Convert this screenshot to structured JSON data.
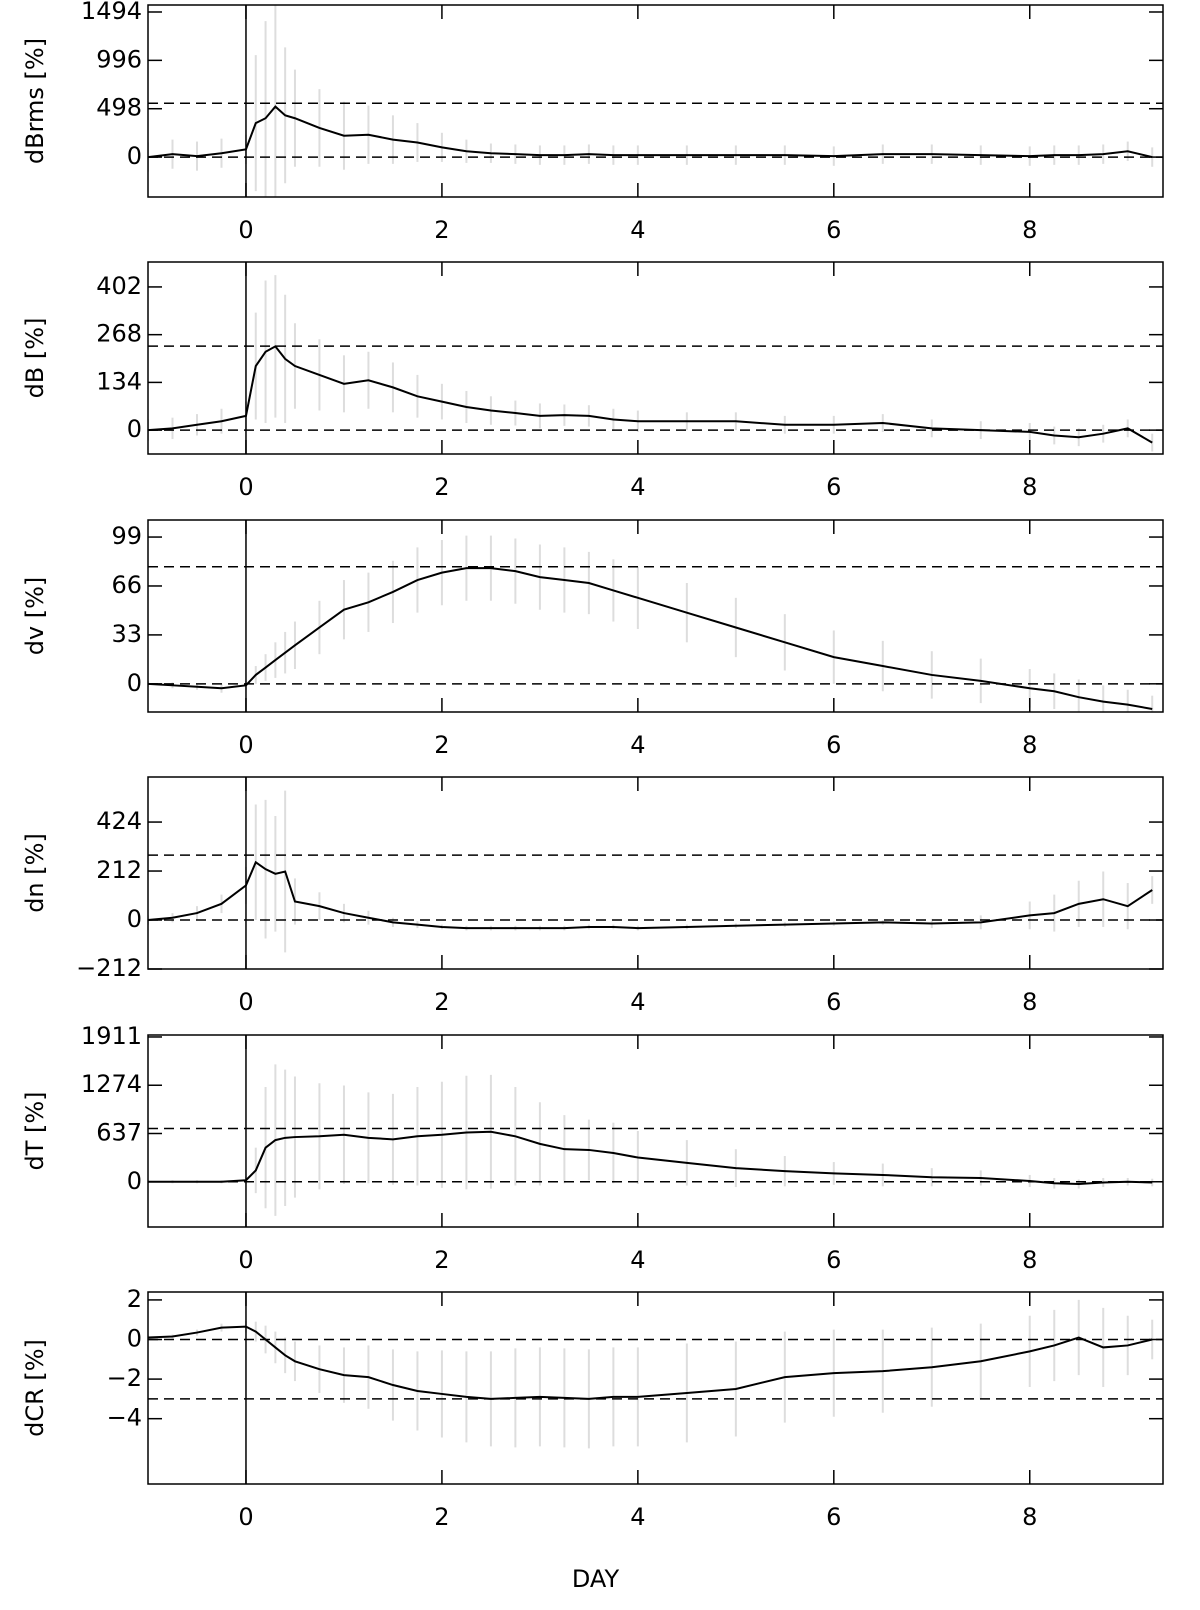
{
  "chart_data": [
    {
      "type": "line",
      "ylabel": "dBrms [%]",
      "x": [
        -1,
        -0.75,
        -0.5,
        -0.25,
        0,
        0.1,
        0.2,
        0.3,
        0.4,
        0.5,
        0.75,
        1,
        1.25,
        1.5,
        1.75,
        2,
        2.25,
        2.5,
        2.75,
        3,
        3.25,
        3.5,
        3.75,
        4,
        4.5,
        5,
        5.5,
        6,
        6.5,
        7,
        7.5,
        8,
        8.25,
        8.5,
        8.75,
        9,
        9.25
      ],
      "series": [
        {
          "color": "#000000",
          "error_color": "#dddddd",
          "values": [
            0,
            30,
            10,
            40,
            80,
            350,
            400,
            520,
            430,
            400,
            300,
            220,
            230,
            180,
            150,
            100,
            60,
            40,
            30,
            20,
            20,
            30,
            20,
            20,
            20,
            20,
            20,
            10,
            30,
            30,
            20,
            10,
            20,
            20,
            30,
            60,
            0
          ],
          "errors": [
            150,
            150,
            150,
            150,
            150,
            700,
            1000,
            1200,
            700,
            500,
            400,
            350,
            300,
            250,
            200,
            150,
            120,
            100,
            100,
            100,
            100,
            100,
            100,
            100,
            100,
            100,
            100,
            100,
            100,
            100,
            100,
            100,
            100,
            100,
            100,
            100,
            100
          ]
        }
      ],
      "xlim": [
        -1,
        9.36
      ],
      "ylim": [
        -411,
        1566
      ],
      "xticks": [
        0,
        2,
        4,
        6,
        8
      ],
      "yticks": [
        0,
        498,
        996,
        1494
      ],
      "hlines": [
        0,
        554
      ],
      "vline": 0
    },
    {
      "type": "line",
      "ylabel": "dB [%]",
      "x": [
        -1,
        -0.75,
        -0.5,
        -0.25,
        0,
        0.1,
        0.2,
        0.3,
        0.4,
        0.5,
        0.75,
        1,
        1.25,
        1.5,
        1.75,
        2,
        2.25,
        2.5,
        2.75,
        3,
        3.25,
        3.5,
        3.75,
        4,
        4.5,
        5,
        5.5,
        6,
        6.5,
        7,
        7.5,
        8,
        8.25,
        8.5,
        8.75,
        9,
        9.25
      ],
      "series": [
        {
          "color": "#000000",
          "error_color": "#dddddd",
          "values": [
            0,
            5,
            15,
            25,
            40,
            180,
            220,
            235,
            200,
            180,
            155,
            130,
            140,
            120,
            95,
            80,
            65,
            55,
            48,
            40,
            42,
            40,
            30,
            25,
            25,
            25,
            15,
            15,
            20,
            5,
            0,
            -5,
            -15,
            -20,
            -10,
            5,
            -35
          ],
          "errors": [
            30,
            30,
            30,
            35,
            40,
            150,
            200,
            200,
            180,
            120,
            100,
            80,
            80,
            70,
            60,
            50,
            45,
            40,
            35,
            35,
            30,
            30,
            30,
            30,
            25,
            25,
            25,
            25,
            25,
            25,
            25,
            25,
            25,
            25,
            25,
            25,
            25
          ]
        }
      ],
      "xlim": [
        -1,
        9.36
      ],
      "ylim": [
        -67,
        472
      ],
      "xticks": [
        0,
        2,
        4,
        6,
        8
      ],
      "yticks": [
        0,
        134,
        268,
        402
      ],
      "hlines": [
        0,
        236
      ],
      "vline": 0
    },
    {
      "type": "line",
      "ylabel": "dv [%]",
      "x": [
        -1,
        -0.75,
        -0.5,
        -0.25,
        0,
        0.1,
        0.2,
        0.3,
        0.4,
        0.5,
        0.75,
        1,
        1.25,
        1.5,
        1.75,
        2,
        2.25,
        2.5,
        2.75,
        3,
        3.25,
        3.5,
        3.75,
        4,
        4.5,
        5,
        5.5,
        6,
        6.5,
        7,
        7.5,
        8,
        8.25,
        8.5,
        8.75,
        9,
        9.25
      ],
      "series": [
        {
          "color": "#000000",
          "error_color": "#dddddd",
          "values": [
            0,
            -1,
            -2,
            -3,
            -1,
            6,
            11,
            16,
            21,
            26,
            38,
            50,
            55,
            62,
            70,
            75,
            78,
            78,
            76,
            72,
            70,
            68,
            63,
            58,
            48,
            38,
            28,
            18,
            12,
            6,
            2,
            -3,
            -5,
            -9,
            -12,
            -14,
            -17
          ],
          "errors": [
            2,
            2,
            2,
            3,
            3,
            6,
            9,
            12,
            14,
            16,
            18,
            20,
            20,
            21,
            22,
            22,
            22,
            22,
            22,
            22,
            22,
            21,
            21,
            21,
            20,
            20,
            19,
            18,
            17,
            16,
            15,
            13,
            12,
            12,
            11,
            10,
            9
          ]
        }
      ],
      "xlim": [
        -1,
        9.36
      ],
      "ylim": [
        -19,
        110.5
      ],
      "xticks": [
        0,
        2,
        4,
        6,
        8
      ],
      "yticks": [
        0,
        33,
        66,
        99
      ],
      "hlines": [
        0,
        79
      ],
      "vline": 0
    },
    {
      "type": "line",
      "ylabel": "dn [%]",
      "x": [
        -1,
        -0.75,
        -0.5,
        -0.25,
        0,
        0.1,
        0.2,
        0.3,
        0.4,
        0.5,
        0.75,
        1,
        1.25,
        1.5,
        1.75,
        2,
        2.25,
        2.5,
        2.75,
        3,
        3.25,
        3.5,
        3.75,
        4,
        4.5,
        5,
        5.5,
        6,
        6.5,
        7,
        7.5,
        8,
        8.25,
        8.5,
        8.75,
        9,
        9.25
      ],
      "series": [
        {
          "color": "#000000",
          "error_color": "#dddddd",
          "values": [
            0,
            10,
            30,
            70,
            150,
            250,
            220,
            200,
            210,
            80,
            60,
            30,
            10,
            -10,
            -20,
            -30,
            -35,
            -35,
            -35,
            -35,
            -35,
            -30,
            -30,
            -35,
            -30,
            -25,
            -20,
            -15,
            -10,
            -15,
            -10,
            20,
            30,
            70,
            90,
            60,
            130
          ],
          "errors": [
            20,
            20,
            30,
            40,
            80,
            250,
            300,
            250,
            350,
            100,
            60,
            40,
            30,
            20,
            15,
            10,
            10,
            10,
            10,
            10,
            10,
            10,
            10,
            10,
            10,
            10,
            10,
            10,
            10,
            20,
            30,
            60,
            80,
            100,
            120,
            100,
            60
          ]
        }
      ],
      "xlim": [
        -1,
        9.36
      ],
      "ylim": [
        -212,
        619
      ],
      "xticks": [
        0,
        2,
        4,
        6,
        8
      ],
      "yticks": [
        {
          "value": -212,
          "label": "−212"
        },
        0,
        212,
        424
      ],
      "hlines": [
        0,
        281
      ],
      "vline": 0
    },
    {
      "type": "line",
      "ylabel": "dT [%]",
      "x": [
        -1,
        -0.75,
        -0.5,
        -0.25,
        0,
        0.1,
        0.2,
        0.3,
        0.4,
        0.5,
        0.75,
        1,
        1.25,
        1.5,
        1.75,
        2,
        2.25,
        2.5,
        2.75,
        3,
        3.25,
        3.5,
        3.75,
        4,
        4.5,
        5,
        5.5,
        6,
        6.5,
        7,
        7.5,
        8,
        8.25,
        8.5,
        8.75,
        9,
        9.25
      ],
      "series": [
        {
          "color": "#000000",
          "error_color": "#dddddd",
          "values": [
            0,
            0,
            0,
            0,
            20,
            150,
            450,
            550,
            580,
            590,
            600,
            620,
            580,
            560,
            600,
            620,
            650,
            660,
            600,
            500,
            430,
            420,
            380,
            320,
            250,
            180,
            140,
            110,
            90,
            60,
            50,
            10,
            -20,
            -30,
            -10,
            0,
            -10
          ],
          "errors": [
            20,
            20,
            20,
            20,
            50,
            300,
            800,
            1000,
            900,
            800,
            700,
            650,
            600,
            600,
            650,
            700,
            750,
            750,
            650,
            550,
            450,
            400,
            400,
            350,
            300,
            250,
            200,
            150,
            150,
            120,
            100,
            80,
            70,
            60,
            60,
            50,
            50
          ]
        }
      ],
      "xlim": [
        -1,
        9.36
      ],
      "ylim": [
        -597,
        1937
      ],
      "xticks": [
        0,
        2,
        4,
        6,
        8
      ],
      "yticks": [
        0,
        637,
        1274,
        1911
      ],
      "hlines": [
        0,
        703
      ],
      "vline": 0
    },
    {
      "type": "line",
      "ylabel": "dCR [%]",
      "xlabel": "DAY",
      "x": [
        -1,
        -0.75,
        -0.5,
        -0.25,
        0,
        0.1,
        0.2,
        0.3,
        0.4,
        0.5,
        0.75,
        1,
        1.25,
        1.5,
        1.75,
        2,
        2.25,
        2.5,
        2.75,
        3,
        3.25,
        3.5,
        3.75,
        4,
        4.5,
        5,
        5.5,
        6,
        6.5,
        7,
        7.5,
        8,
        8.25,
        8.5,
        8.75,
        9,
        9.25
      ],
      "series": [
        {
          "color": "#000000",
          "error_color": "#dddddd",
          "values": [
            0.1,
            0.15,
            0.35,
            0.6,
            0.65,
            0.4,
            0,
            -0.4,
            -0.8,
            -1.1,
            -1.5,
            -1.8,
            -1.9,
            -2.3,
            -2.6,
            -2.75,
            -2.9,
            -3,
            -2.95,
            -2.9,
            -2.95,
            -3,
            -2.9,
            -2.9,
            -2.7,
            -2.5,
            -1.9,
            -1.7,
            -1.6,
            -1.4,
            -1.1,
            -0.6,
            -0.3,
            0.1,
            -0.4,
            -0.3,
            0
          ],
          "errors": [
            0.1,
            0.1,
            0.15,
            0.2,
            0.3,
            0.5,
            0.7,
            0.8,
            0.9,
            1,
            1.2,
            1.4,
            1.6,
            1.8,
            2,
            2.2,
            2.3,
            2.4,
            2.5,
            2.5,
            2.5,
            2.5,
            2.5,
            2.5,
            2.5,
            2.4,
            2.3,
            2.2,
            2.1,
            2,
            1.9,
            1.8,
            1.8,
            1.9,
            2,
            1.5,
            1
          ]
        }
      ],
      "xlim": [
        -1,
        9.36
      ],
      "ylim": [
        -7.3,
        2.4
      ],
      "xticks": [
        0,
        2,
        4,
        6,
        8
      ],
      "yticks": [
        {
          "value": -4,
          "label": "−4"
        },
        {
          "value": -2,
          "label": "−2"
        },
        0,
        2
      ],
      "hlines": [
        0,
        -3
      ],
      "vline": 0
    }
  ]
}
